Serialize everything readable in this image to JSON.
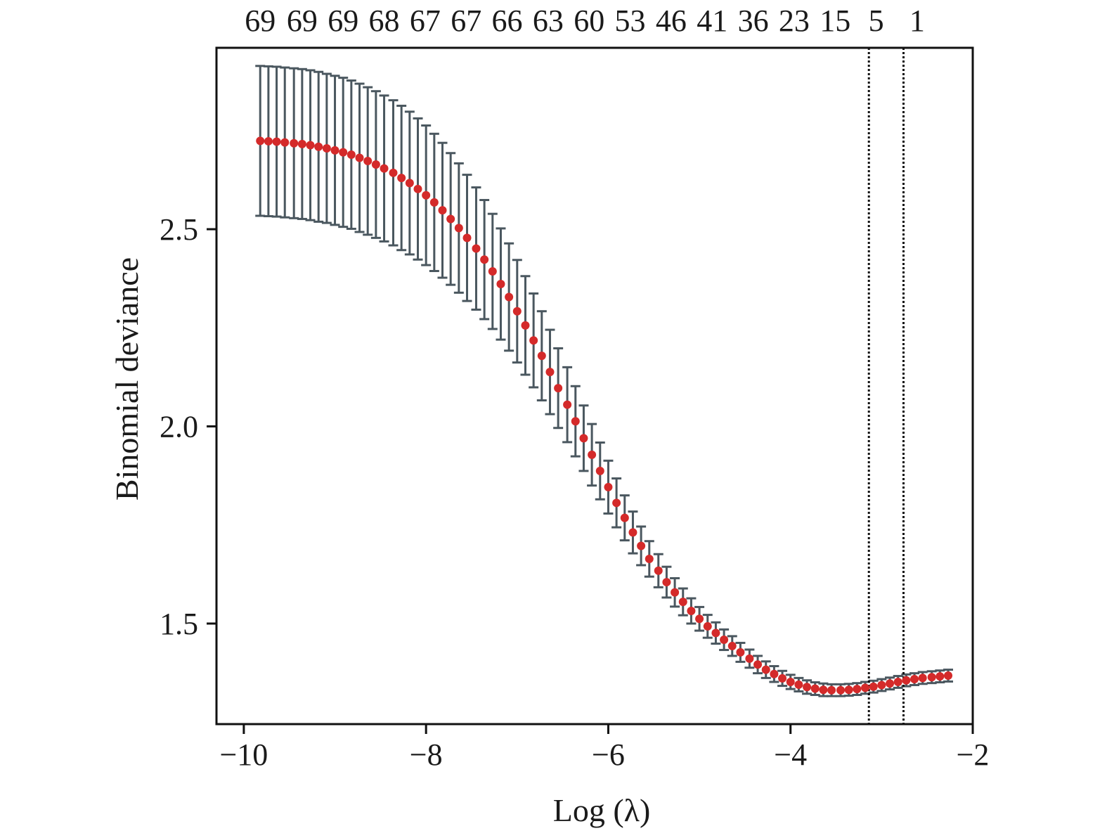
{
  "chart_data": {
    "type": "scatter",
    "title": "",
    "xlabel": "Log (λ)",
    "ylabel": "Binomial deviance",
    "xlim": [
      -10.3,
      -2.0
    ],
    "ylim": [
      1.245,
      2.96
    ],
    "x_ticks": [
      -10,
      -8,
      -6,
      -4,
      -2
    ],
    "x_tick_labels": [
      "−10",
      "−8",
      "−6",
      "−4",
      "−2"
    ],
    "y_ticks": [
      1.5,
      2.0,
      2.5
    ],
    "y_tick_labels": [
      "1.5",
      "2.0",
      "2.5"
    ],
    "top_axis": {
      "positions": [
        -9.82,
        -9.36,
        -8.91,
        -8.46,
        -8.01,
        -7.56,
        -7.11,
        -6.66,
        -6.21,
        -5.76,
        -5.31,
        -4.86,
        -4.41,
        -3.96,
        -3.51,
        -3.06,
        -2.61
      ],
      "labels": [
        "69",
        "69",
        "69",
        "68",
        "67",
        "67",
        "66",
        "63",
        "60",
        "53",
        "46",
        "41",
        "36",
        "23",
        "15",
        "5",
        "1"
      ]
    },
    "vlines": [
      -3.14,
      -2.76
    ],
    "grid": false,
    "legend": "none",
    "colors": {
      "point": "#d42a2a",
      "errorbar": "#4a575f",
      "axis": "#111111",
      "vline": "#111111"
    },
    "x": [
      -9.82,
      -9.73,
      -9.64,
      -9.55,
      -9.45,
      -9.36,
      -9.27,
      -9.18,
      -9.09,
      -9.0,
      -8.91,
      -8.82,
      -8.73,
      -8.64,
      -8.55,
      -8.46,
      -8.36,
      -8.27,
      -8.18,
      -8.09,
      -8.0,
      -7.91,
      -7.82,
      -7.73,
      -7.64,
      -7.55,
      -7.45,
      -7.36,
      -7.27,
      -7.18,
      -7.09,
      -7.0,
      -6.91,
      -6.82,
      -6.73,
      -6.64,
      -6.55,
      -6.45,
      -6.36,
      -6.27,
      -6.18,
      -6.09,
      -6.0,
      -5.91,
      -5.82,
      -5.73,
      -5.64,
      -5.55,
      -5.45,
      -5.36,
      -5.27,
      -5.18,
      -5.09,
      -5.0,
      -4.91,
      -4.82,
      -4.73,
      -4.64,
      -4.55,
      -4.45,
      -4.36,
      -4.27,
      -4.18,
      -4.09,
      -4.0,
      -3.91,
      -3.82,
      -3.73,
      -3.64,
      -3.55,
      -3.45,
      -3.36,
      -3.27,
      -3.18,
      -3.09,
      -3.0,
      -2.91,
      -2.82,
      -2.73,
      -2.64,
      -2.55,
      -2.45,
      -2.36,
      -2.27
    ],
    "y": [
      2.724,
      2.723,
      2.722,
      2.72,
      2.718,
      2.716,
      2.713,
      2.709,
      2.705,
      2.7,
      2.695,
      2.689,
      2.681,
      2.673,
      2.664,
      2.654,
      2.643,
      2.63,
      2.617,
      2.602,
      2.586,
      2.568,
      2.548,
      2.526,
      2.503,
      2.478,
      2.451,
      2.423,
      2.393,
      2.361,
      2.328,
      2.292,
      2.256,
      2.218,
      2.179,
      2.138,
      2.097,
      2.055,
      2.013,
      1.97,
      1.928,
      1.887,
      1.846,
      1.806,
      1.768,
      1.731,
      1.697,
      1.664,
      1.634,
      1.605,
      1.579,
      1.555,
      1.532,
      1.512,
      1.493,
      1.476,
      1.459,
      1.443,
      1.427,
      1.411,
      1.396,
      1.383,
      1.372,
      1.361,
      1.352,
      1.345,
      1.339,
      1.335,
      1.332,
      1.331,
      1.331,
      1.332,
      1.334,
      1.337,
      1.34,
      1.344,
      1.348,
      1.352,
      1.356,
      1.359,
      1.362,
      1.364,
      1.366,
      1.368
    ],
    "err": [
      0.19,
      0.19,
      0.19,
      0.19,
      0.19,
      0.19,
      0.19,
      0.19,
      0.189,
      0.189,
      0.189,
      0.188,
      0.188,
      0.187,
      0.186,
      0.185,
      0.184,
      0.183,
      0.181,
      0.179,
      0.177,
      0.174,
      0.171,
      0.167,
      0.164,
      0.16,
      0.155,
      0.151,
      0.146,
      0.141,
      0.136,
      0.13,
      0.125,
      0.119,
      0.113,
      0.107,
      0.101,
      0.095,
      0.089,
      0.083,
      0.078,
      0.072,
      0.067,
      0.062,
      0.057,
      0.053,
      0.049,
      0.045,
      0.042,
      0.039,
      0.036,
      0.034,
      0.032,
      0.03,
      0.029,
      0.027,
      0.026,
      0.025,
      0.024,
      0.023,
      0.022,
      0.021,
      0.02,
      0.019,
      0.018,
      0.017,
      0.017,
      0.016,
      0.016,
      0.015,
      0.015,
      0.015,
      0.015,
      0.015,
      0.015,
      0.015,
      0.015,
      0.015,
      0.015,
      0.015,
      0.015,
      0.015,
      0.015,
      0.015
    ]
  }
}
